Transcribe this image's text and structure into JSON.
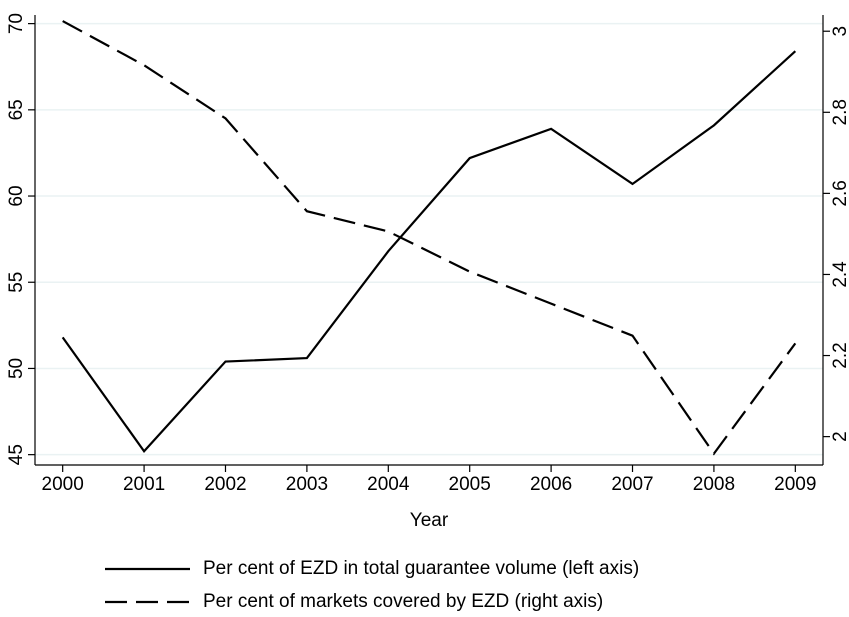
{
  "chart_data": {
    "type": "line",
    "x_label": "Year",
    "x": [
      2000,
      2001,
      2002,
      2003,
      2004,
      2005,
      2006,
      2007,
      2008,
      2009
    ],
    "xlim": [
      1999.66,
      2009.34
    ],
    "xticks": [
      2000,
      2001,
      2002,
      2003,
      2004,
      2005,
      2006,
      2007,
      2008,
      2009
    ],
    "ylim": [
      44.4,
      70.5
    ],
    "yticks": [
      45,
      50,
      55,
      60,
      65,
      70
    ],
    "y2lim": [
      1.93,
      3.04
    ],
    "y2ticks": [
      2,
      2.2,
      2.4,
      2.6,
      2.8,
      3
    ],
    "grid": true,
    "legend": "bottom",
    "series": [
      {
        "name": "Per cent of EZD in total guarantee volume (left axis)",
        "color": "#000000",
        "dash": "solid",
        "values": [
          51.8,
          45.2,
          50.4,
          50.6,
          56.8,
          62.2,
          63.9,
          60.7,
          64.1,
          68.4
        ]
      },
      {
        "name": "Per cent of markets covered by EZD (right axis)",
        "color": "#000000",
        "dash": "dashed",
        "axis": "y2",
        "values": [
          3.025,
          2.916,
          2.785,
          2.556,
          2.506,
          2.407,
          2.328,
          2.249,
          1.958,
          2.23
        ]
      }
    ]
  }
}
